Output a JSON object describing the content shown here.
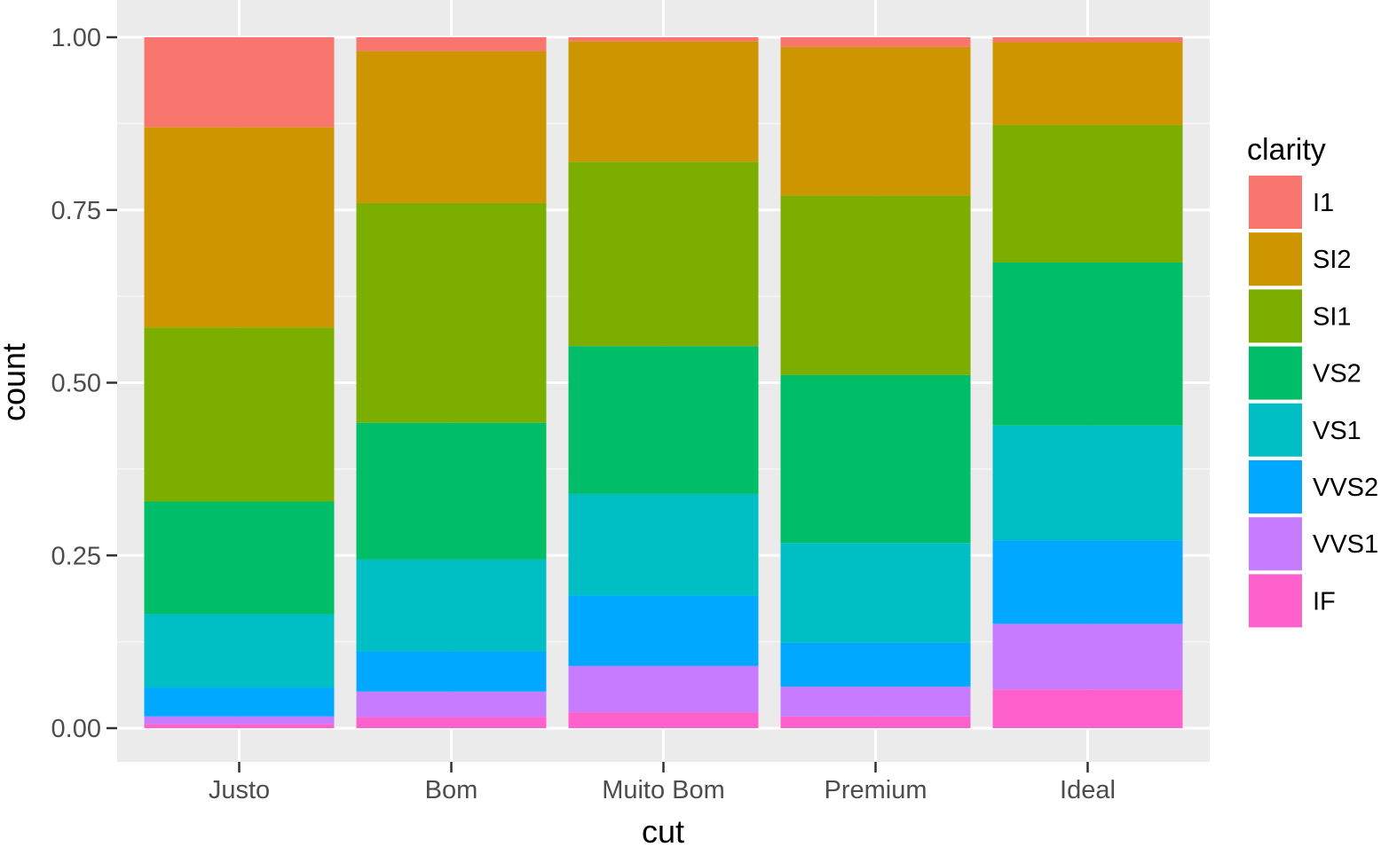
{
  "chart_data": {
    "type": "bar",
    "stacked": true,
    "position": "fill",
    "xlabel": "cut",
    "ylabel": "count",
    "ylim": [
      0,
      1
    ],
    "yticks": [
      0,
      0.25,
      0.5,
      0.75,
      1
    ],
    "ytick_labels": [
      "0.00",
      "0.25",
      "0.50",
      "0.75",
      "1.00"
    ],
    "categories": [
      "Justo",
      "Bom",
      "Muito Bom",
      "Premium",
      "Ideal"
    ],
    "grid": true,
    "legend": {
      "title": "clarity",
      "placement": "right"
    },
    "series": [
      {
        "name": "I1",
        "color": "#F8766D",
        "values": [
          0.13,
          0.02,
          0.006,
          0.014,
          0.007
        ]
      },
      {
        "name": "SI2",
        "color": "#CD9600",
        "values": [
          0.29,
          0.22,
          0.174,
          0.215,
          0.12
        ]
      },
      {
        "name": "SI1",
        "color": "#7CAE00",
        "values": [
          0.252,
          0.318,
          0.267,
          0.26,
          0.199
        ]
      },
      {
        "name": "VS2",
        "color": "#00BE67",
        "values": [
          0.163,
          0.198,
          0.214,
          0.243,
          0.236
        ]
      },
      {
        "name": "VS1",
        "color": "#00BFC4",
        "values": [
          0.106,
          0.133,
          0.147,
          0.144,
          0.166
        ]
      },
      {
        "name": "VVS2",
        "color": "#00A9FF",
        "values": [
          0.042,
          0.058,
          0.102,
          0.064,
          0.121
        ]
      },
      {
        "name": "VVS1",
        "color": "#C77CFF",
        "values": [
          0.011,
          0.037,
          0.067,
          0.043,
          0.095
        ]
      },
      {
        "name": "IF",
        "color": "#FF61CC",
        "values": [
          0.006,
          0.016,
          0.023,
          0.017,
          0.056
        ]
      }
    ]
  }
}
